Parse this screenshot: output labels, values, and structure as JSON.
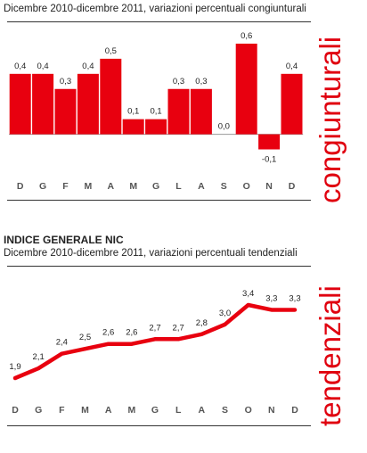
{
  "chart_data": [
    {
      "type": "bar",
      "title": "",
      "subtitle": "Dicembre 2010-dicembre 2011, variazioni percentuali congiunturali",
      "side_label": "congiunturali",
      "categories": [
        "D",
        "G",
        "F",
        "M",
        "A",
        "M",
        "G",
        "L",
        "A",
        "S",
        "O",
        "N",
        "D"
      ],
      "values": [
        0.4,
        0.4,
        0.3,
        0.4,
        0.5,
        0.1,
        0.1,
        0.3,
        0.3,
        0.0,
        0.6,
        -0.1,
        0.4
      ],
      "value_labels": [
        "0,4",
        "0,4",
        "0,3",
        "0,4",
        "0,5",
        "0,1",
        "0,1",
        "0,3",
        "0,3",
        "0,0",
        "0,6",
        "-0,1",
        "0,4"
      ],
      "ylim": [
        -0.15,
        0.7
      ],
      "grid": false,
      "color": "#e8000f"
    },
    {
      "type": "line",
      "title": "INDICE GENERALE NIC",
      "subtitle": "Dicembre 2010-dicembre 2011, variazioni percentuali tendenziali",
      "side_label": "tendenziali",
      "categories": [
        "D",
        "G",
        "F",
        "M",
        "A",
        "M",
        "G",
        "L",
        "A",
        "S",
        "O",
        "N",
        "D"
      ],
      "values": [
        1.9,
        2.1,
        2.4,
        2.5,
        2.6,
        2.6,
        2.7,
        2.7,
        2.8,
        3.0,
        3.4,
        3.3,
        3.3
      ],
      "value_labels": [
        "1,9",
        "2,1",
        "2,4",
        "2,5",
        "2,6",
        "2,6",
        "2,7",
        "2,7",
        "2,8",
        "3,0",
        "3,4",
        "3,3",
        "3,3"
      ],
      "ylim": [
        1.6,
        3.6
      ],
      "grid": false,
      "color": "#e8000f"
    }
  ]
}
